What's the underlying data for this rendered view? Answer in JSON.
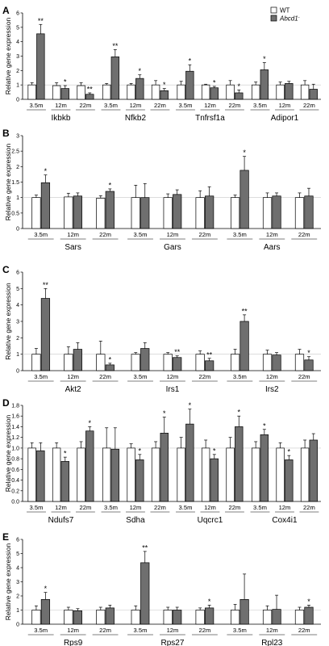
{
  "colors": {
    "wt": "#ffffff",
    "ko": "#6f6f6f",
    "axis": "#000000",
    "grid": "#c8c8c8"
  },
  "legend": {
    "items": [
      {
        "label": "WT",
        "color": "#ffffff"
      },
      {
        "label": "Abcd1",
        "color": "#6f6f6f"
      }
    ]
  },
  "chart_data": [
    {
      "type": "bar",
      "panel": "A",
      "ylabel": "Relative gene expression",
      "ylim": [
        0,
        6
      ],
      "yticks": [
        0,
        1,
        2,
        3,
        4,
        5,
        6
      ],
      "genes": [
        {
          "name": "Ikbkb",
          "groups": [
            {
              "age": "3.5m",
              "wt": 1.0,
              "wt_err": 0.15,
              "ko": 4.55,
              "ko_err": 0.65,
              "sig": "**"
            },
            {
              "age": "12m",
              "wt": 0.95,
              "wt_err": 0.2,
              "ko": 0.75,
              "ko_err": 0.2,
              "sig": "*"
            },
            {
              "age": "22m",
              "wt": 0.95,
              "wt_err": 0.2,
              "ko": 0.35,
              "ko_err": 0.1,
              "sig": "**"
            }
          ]
        },
        {
          "name": "Nfkb2",
          "groups": [
            {
              "age": "3.5m",
              "wt": 1.0,
              "wt_err": 0.1,
              "ko": 2.95,
              "ko_err": 0.5,
              "sig": "**"
            },
            {
              "age": "12m",
              "wt": 1.0,
              "wt_err": 0.1,
              "ko": 1.45,
              "ko_err": 0.25,
              "sig": "*"
            },
            {
              "age": "22m",
              "wt": 1.0,
              "wt_err": 0.3,
              "ko": 0.6,
              "ko_err": 0.15,
              "sig": "*"
            }
          ]
        },
        {
          "name": "Tnfrsf1a",
          "groups": [
            {
              "age": "3.5m",
              "wt": 1.0,
              "wt_err": 0.25,
              "ko": 1.95,
              "ko_err": 0.45,
              "sig": "*"
            },
            {
              "age": "12m",
              "wt": 1.0,
              "wt_err": 0.05,
              "ko": 0.8,
              "ko_err": 0.1,
              "sig": "*"
            },
            {
              "age": "22m",
              "wt": 1.0,
              "wt_err": 0.3,
              "ko": 0.45,
              "ko_err": 0.2,
              "sig": "*"
            }
          ]
        },
        {
          "name": "Adipor1",
          "groups": [
            {
              "age": "3.5m",
              "wt": 1.0,
              "wt_err": 0.2,
              "ko": 2.05,
              "ko_err": 0.5,
              "sig": "*"
            },
            {
              "age": "12m",
              "wt": 1.0,
              "wt_err": 0.2,
              "ko": 1.1,
              "ko_err": 0.15,
              "sig": ""
            },
            {
              "age": "22m",
              "wt": 1.0,
              "wt_err": 0.3,
              "ko": 0.7,
              "ko_err": 0.35,
              "sig": ""
            }
          ]
        }
      ]
    },
    {
      "type": "bar",
      "panel": "B",
      "ylabel": "Relative gene expression",
      "ylim": [
        0,
        3
      ],
      "yticks": [
        0,
        0.5,
        1,
        1.5,
        2,
        2.5,
        3
      ],
      "genes": [
        {
          "name": "Sars",
          "groups": [
            {
              "age": "3.5m",
              "wt": 1.0,
              "wt_err": 0.08,
              "ko": 1.48,
              "ko_err": 0.25,
              "sig": "*"
            },
            {
              "age": "12m",
              "wt": 1.02,
              "wt_err": 0.12,
              "ko": 1.05,
              "ko_err": 0.1,
              "sig": ""
            },
            {
              "age": "22m",
              "wt": 0.98,
              "wt_err": 0.08,
              "ko": 1.2,
              "ko_err": 0.08,
              "sig": "*"
            }
          ]
        },
        {
          "name": "Gars",
          "groups": [
            {
              "age": "3.5m",
              "wt": 1.0,
              "wt_err": 0.4,
              "ko": 1.0,
              "ko_err": 0.45,
              "sig": ""
            },
            {
              "age": "12m",
              "wt": 1.0,
              "wt_err": 0.12,
              "ko": 1.1,
              "ko_err": 0.15,
              "sig": ""
            },
            {
              "age": "22m",
              "wt": 1.0,
              "wt_err": 0.22,
              "ko": 1.05,
              "ko_err": 0.3,
              "sig": ""
            }
          ]
        },
        {
          "name": "Aars",
          "groups": [
            {
              "age": "3.5m",
              "wt": 1.0,
              "wt_err": 0.08,
              "ko": 1.88,
              "ko_err": 0.45,
              "sig": "*"
            },
            {
              "age": "12m",
              "wt": 1.0,
              "wt_err": 0.15,
              "ko": 1.05,
              "ko_err": 0.1,
              "sig": ""
            },
            {
              "age": "22m",
              "wt": 1.0,
              "wt_err": 0.15,
              "ko": 1.05,
              "ko_err": 0.25,
              "sig": ""
            }
          ]
        }
      ]
    },
    {
      "type": "bar",
      "panel": "C",
      "ylabel": "Relative gene expression",
      "ylim": [
        0,
        6
      ],
      "yticks": [
        0,
        1,
        2,
        3,
        4,
        5,
        6
      ],
      "genes": [
        {
          "name": "Akt2",
          "groups": [
            {
              "age": "3.5m",
              "wt": 1.0,
              "wt_err": 0.35,
              "ko": 4.4,
              "ko_err": 0.6,
              "sig": "**"
            },
            {
              "age": "12m",
              "wt": 1.0,
              "wt_err": 0.45,
              "ko": 1.3,
              "ko_err": 0.4,
              "sig": ""
            },
            {
              "age": "22m",
              "wt": 1.0,
              "wt_err": 0.8,
              "ko": 0.35,
              "ko_err": 0.1,
              "sig": "*"
            }
          ]
        },
        {
          "name": "Irs1",
          "groups": [
            {
              "age": "3.5m",
              "wt": 1.0,
              "wt_err": 0.1,
              "ko": 1.35,
              "ko_err": 0.35,
              "sig": ""
            },
            {
              "age": "12m",
              "wt": 1.0,
              "wt_err": 0.1,
              "ko": 0.8,
              "ko_err": 0.1,
              "sig": "**"
            },
            {
              "age": "22m",
              "wt": 1.0,
              "wt_err": 0.2,
              "ko": 0.6,
              "ko_err": 0.15,
              "sig": "**"
            }
          ]
        },
        {
          "name": "Irs2",
          "groups": [
            {
              "age": "3.5m",
              "wt": 1.0,
              "wt_err": 0.3,
              "ko": 3.0,
              "ko_err": 0.4,
              "sig": "**"
            },
            {
              "age": "12m",
              "wt": 1.0,
              "wt_err": 0.25,
              "ko": 0.95,
              "ko_err": 0.15,
              "sig": ""
            },
            {
              "age": "22m",
              "wt": 1.0,
              "wt_err": 0.3,
              "ko": 0.65,
              "ko_err": 0.2,
              "sig": "*"
            }
          ]
        }
      ]
    },
    {
      "type": "bar",
      "panel": "D",
      "ylabel": "Relative gene expression",
      "ylim": [
        0,
        1.8
      ],
      "yticks": [
        0,
        0.2,
        0.4,
        0.6,
        0.8,
        1.0,
        1.2,
        1.4,
        1.6,
        1.8
      ],
      "ytick_labels": [
        "0.0",
        "0.2",
        "0.4",
        "0.6",
        "0.8",
        "1.0",
        "1.2",
        "1.4",
        "1.6",
        "1.8"
      ],
      "genes": [
        {
          "name": "Ndufs7",
          "groups": [
            {
              "age": "3.5m",
              "wt": 1.0,
              "wt_err": 0.1,
              "ko": 0.95,
              "ko_err": 0.15,
              "sig": ""
            },
            {
              "age": "12m",
              "wt": 1.0,
              "wt_err": 0.1,
              "ko": 0.75,
              "ko_err": 0.08,
              "sig": "*"
            },
            {
              "age": "22m",
              "wt": 1.0,
              "wt_err": 0.12,
              "ko": 1.32,
              "ko_err": 0.08,
              "sig": "*"
            }
          ]
        },
        {
          "name": "Sdha",
          "groups": [
            {
              "age": "3.5m",
              "wt": 1.0,
              "wt_err": 0.38,
              "ko": 0.98,
              "ko_err": 0.4,
              "sig": ""
            },
            {
              "age": "12m",
              "wt": 1.0,
              "wt_err": 0.08,
              "ko": 0.78,
              "ko_err": 0.1,
              "sig": "*"
            },
            {
              "age": "22m",
              "wt": 1.0,
              "wt_err": 0.12,
              "ko": 1.28,
              "ko_err": 0.3,
              "sig": "*"
            }
          ]
        },
        {
          "name": "Uqcrc1",
          "groups": [
            {
              "age": "3.5m",
              "wt": 1.0,
              "wt_err": 0.2,
              "ko": 1.45,
              "ko_err": 0.28,
              "sig": "*"
            },
            {
              "age": "12m",
              "wt": 1.0,
              "wt_err": 0.15,
              "ko": 0.8,
              "ko_err": 0.08,
              "sig": "*"
            },
            {
              "age": "22m",
              "wt": 1.0,
              "wt_err": 0.2,
              "ko": 1.4,
              "ko_err": 0.2,
              "sig": "*"
            }
          ]
        },
        {
          "name": "Cox4i1",
          "groups": [
            {
              "age": "3.5m",
              "wt": 1.0,
              "wt_err": 0.12,
              "ko": 1.25,
              "ko_err": 0.1,
              "sig": "*"
            },
            {
              "age": "12m",
              "wt": 1.0,
              "wt_err": 0.1,
              "ko": 0.78,
              "ko_err": 0.08,
              "sig": "*"
            },
            {
              "age": "22m",
              "wt": 1.0,
              "wt_err": 0.15,
              "ko": 1.15,
              "ko_err": 0.12,
              "sig": ""
            }
          ]
        }
      ]
    },
    {
      "type": "bar",
      "panel": "E",
      "ylabel": "Relative gene expression",
      "ylim": [
        0,
        6
      ],
      "yticks": [
        0,
        1,
        2,
        3,
        4,
        5,
        6
      ],
      "genes": [
        {
          "name": "Rps9",
          "groups": [
            {
              "age": "3.5m",
              "wt": 1.0,
              "wt_err": 0.3,
              "ko": 1.75,
              "ko_err": 0.5,
              "sig": "*"
            },
            {
              "age": "12m",
              "wt": 1.0,
              "wt_err": 0.2,
              "ko": 0.95,
              "ko_err": 0.15,
              "sig": ""
            },
            {
              "age": "22m",
              "wt": 1.0,
              "wt_err": 0.2,
              "ko": 1.15,
              "ko_err": 0.2,
              "sig": ""
            }
          ]
        },
        {
          "name": "Rps27",
          "groups": [
            {
              "age": "3.5m",
              "wt": 1.0,
              "wt_err": 0.3,
              "ko": 4.35,
              "ko_err": 0.8,
              "sig": "**"
            },
            {
              "age": "12m",
              "wt": 1.0,
              "wt_err": 0.2,
              "ko": 1.0,
              "ko_err": 0.2,
              "sig": ""
            },
            {
              "age": "22m",
              "wt": 1.0,
              "wt_err": 0.15,
              "ko": 1.15,
              "ko_err": 0.2,
              "sig": "*"
            }
          ]
        },
        {
          "name": "Rpl23",
          "groups": [
            {
              "age": "3.5m",
              "wt": 1.0,
              "wt_err": 0.4,
              "ko": 1.75,
              "ko_err": 1.8,
              "sig": ""
            },
            {
              "age": "12m",
              "wt": 1.0,
              "wt_err": 0.3,
              "ko": 1.05,
              "ko_err": 1.0,
              "sig": ""
            },
            {
              "age": "22m",
              "wt": 1.0,
              "wt_err": 0.2,
              "ko": 1.2,
              "ko_err": 0.15,
              "sig": "*"
            }
          ]
        }
      ]
    }
  ]
}
